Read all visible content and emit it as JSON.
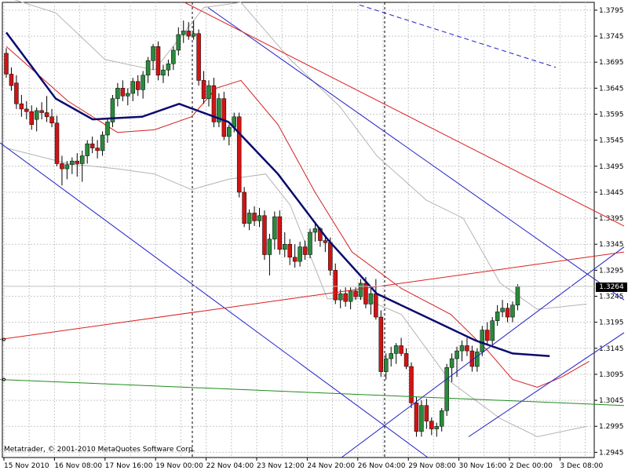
{
  "watermark": "Metatrader, © 2001-2010 MetaQuotes Software Corp.",
  "current_price_label": "1.3264",
  "colors": {
    "bull": "#2a8a3c",
    "bear": "#d01414",
    "ma_slow": "#0a0a6e",
    "ma_fast": "#d42020",
    "bands": "#b4b4b4",
    "channel_blue": "#1e1ec8",
    "channel_red": "#dc1e1e",
    "trend_green": "#1e8c1e",
    "grid": "#c8c8c8"
  },
  "chart_data": {
    "type": "candlestick",
    "y_ticks": [
      "1.3795",
      "1.3745",
      "1.3695",
      "1.3645",
      "1.3595",
      "1.3545",
      "1.3495",
      "1.3445",
      "1.3395",
      "1.3345",
      "1.3295",
      "1.3245",
      "1.3195",
      "1.3145",
      "1.3095",
      "1.3045",
      "1.2995",
      "1.2945"
    ],
    "x_ticks": [
      "15 Nov 2010",
      "16 Nov 08:00",
      "17 Nov 16:00",
      "19 Nov 00:00",
      "22 Nov 04:00",
      "23 Nov 12:00",
      "24 Nov 20:00",
      "26 Nov 04:00",
      "29 Nov 08:00",
      "30 Nov 16:00",
      "2 Dec 00:00",
      "3 Dec 08:00"
    ],
    "ylim": [
      1.2935,
      1.381
    ],
    "candles": [
      [
        1.3712,
        1.3722,
        1.3665,
        1.3672
      ],
      [
        1.3672,
        1.3685,
        1.364,
        1.365
      ],
      [
        1.3655,
        1.367,
        1.3605,
        1.3615
      ],
      [
        1.3615,
        1.3632,
        1.359,
        1.3605
      ],
      [
        1.3605,
        1.362,
        1.3585,
        1.36
      ],
      [
        1.36,
        1.3612,
        1.3565,
        1.3575
      ],
      [
        1.3585,
        1.3608,
        1.3562,
        1.3602
      ],
      [
        1.3602,
        1.3618,
        1.3585,
        1.3598
      ],
      [
        1.3598,
        1.363,
        1.358,
        1.359
      ],
      [
        1.359,
        1.3605,
        1.357,
        1.3578
      ],
      [
        1.3578,
        1.3592,
        1.3495,
        1.35
      ],
      [
        1.35,
        1.3515,
        1.3458,
        1.349
      ],
      [
        1.349,
        1.3505,
        1.347,
        1.3498
      ],
      [
        1.3498,
        1.3512,
        1.348,
        1.3505
      ],
      [
        1.3505,
        1.352,
        1.3475,
        1.35
      ],
      [
        1.35,
        1.3525,
        1.3465,
        1.3515
      ],
      [
        1.3515,
        1.3545,
        1.35,
        1.3538
      ],
      [
        1.3538,
        1.3552,
        1.352,
        1.353
      ],
      [
        1.353,
        1.3545,
        1.351,
        1.3525
      ],
      [
        1.3525,
        1.3562,
        1.3515,
        1.3555
      ],
      [
        1.3555,
        1.3585,
        1.354,
        1.358
      ],
      [
        1.358,
        1.3632,
        1.357,
        1.3625
      ],
      [
        1.3625,
        1.3655,
        1.361,
        1.3645
      ],
      [
        1.3645,
        1.366,
        1.362,
        1.363
      ],
      [
        1.363,
        1.3645,
        1.3612,
        1.3635
      ],
      [
        1.3635,
        1.3665,
        1.362,
        1.3658
      ],
      [
        1.3658,
        1.367,
        1.363,
        1.3642
      ],
      [
        1.3642,
        1.3678,
        1.3625,
        1.367
      ],
      [
        1.367,
        1.3705,
        1.3655,
        1.3698
      ],
      [
        1.3698,
        1.373,
        1.368,
        1.3725
      ],
      [
        1.3725,
        1.3735,
        1.366,
        1.367
      ],
      [
        1.367,
        1.369,
        1.3655,
        1.368
      ],
      [
        1.368,
        1.37,
        1.3668,
        1.3692
      ],
      [
        1.3692,
        1.3725,
        1.368,
        1.3718
      ],
      [
        1.3718,
        1.3762,
        1.3708,
        1.3748
      ],
      [
        1.3748,
        1.3775,
        1.3732,
        1.3755
      ],
      [
        1.3755,
        1.3772,
        1.3738,
        1.3745
      ],
      [
        1.3745,
        1.3775,
        1.3738,
        1.375
      ],
      [
        1.375,
        1.3758,
        1.365,
        1.366
      ],
      [
        1.366,
        1.3678,
        1.3615,
        1.3625
      ],
      [
        1.3625,
        1.366,
        1.361,
        1.365
      ],
      [
        1.365,
        1.3665,
        1.357,
        1.358
      ],
      [
        1.358,
        1.3635,
        1.357,
        1.3625
      ],
      [
        1.3625,
        1.3638,
        1.3545,
        1.3552
      ],
      [
        1.3552,
        1.3575,
        1.3535,
        1.357
      ],
      [
        1.357,
        1.3598,
        1.356,
        1.359
      ],
      [
        1.359,
        1.3598,
        1.3435,
        1.3445
      ],
      [
        1.3445,
        1.3455,
        1.3378,
        1.3385
      ],
      [
        1.3385,
        1.3412,
        1.3372,
        1.3405
      ],
      [
        1.3405,
        1.3418,
        1.338,
        1.339
      ],
      [
        1.339,
        1.3415,
        1.3378,
        1.34
      ],
      [
        1.34,
        1.341,
        1.3315,
        1.3325
      ],
      [
        1.3325,
        1.3365,
        1.3285,
        1.3355
      ],
      [
        1.3355,
        1.3408,
        1.3335,
        1.3398
      ],
      [
        1.3398,
        1.341,
        1.3325,
        1.3335
      ],
      [
        1.3335,
        1.3368,
        1.332,
        1.3345
      ],
      [
        1.3345,
        1.3355,
        1.3305,
        1.332
      ],
      [
        1.332,
        1.3345,
        1.33,
        1.3312
      ],
      [
        1.3312,
        1.335,
        1.3302,
        1.334
      ],
      [
        1.334,
        1.3352,
        1.3315,
        1.3325
      ],
      [
        1.3325,
        1.3375,
        1.3318,
        1.3368
      ],
      [
        1.3368,
        1.3385,
        1.335,
        1.3375
      ],
      [
        1.3375,
        1.3378,
        1.334,
        1.3352
      ],
      [
        1.3352,
        1.3362,
        1.333,
        1.3348
      ],
      [
        1.3348,
        1.3358,
        1.3285,
        1.3295
      ],
      [
        1.3295,
        1.3308,
        1.323,
        1.3238
      ],
      [
        1.3238,
        1.3258,
        1.3222,
        1.325
      ],
      [
        1.325,
        1.3262,
        1.3225,
        1.3235
      ],
      [
        1.3235,
        1.3262,
        1.322,
        1.3255
      ],
      [
        1.3255,
        1.3262,
        1.3238,
        1.3244
      ],
      [
        1.3244,
        1.3278,
        1.3238,
        1.327
      ],
      [
        1.327,
        1.3282,
        1.3222,
        1.323
      ],
      [
        1.323,
        1.3265,
        1.321,
        1.325
      ],
      [
        1.325,
        1.3278,
        1.32,
        1.3205
      ],
      [
        1.3205,
        1.3218,
        1.309,
        1.31
      ],
      [
        1.31,
        1.3135,
        1.3085,
        1.3125
      ],
      [
        1.3125,
        1.3148,
        1.311,
        1.3135
      ],
      [
        1.3135,
        1.3155,
        1.3115,
        1.315
      ],
      [
        1.315,
        1.3165,
        1.313,
        1.3135
      ],
      [
        1.3135,
        1.3145,
        1.3105,
        1.311
      ],
      [
        1.311,
        1.3118,
        1.303,
        1.304
      ],
      [
        1.304,
        1.3052,
        1.2975,
        1.2985
      ],
      [
        1.2985,
        1.3045,
        1.2975,
        1.3035
      ],
      [
        1.3035,
        1.3048,
        1.299,
        1.3005
      ],
      [
        1.3005,
        1.3012,
        1.2978,
        1.299
      ],
      [
        1.299,
        1.3002,
        1.2975,
        1.2995
      ],
      [
        1.2995,
        1.303,
        1.2985,
        1.3025
      ],
      [
        1.3025,
        1.3115,
        1.3015,
        1.3108
      ],
      [
        1.3108,
        1.3135,
        1.308,
        1.3125
      ],
      [
        1.3125,
        1.3148,
        1.309,
        1.314
      ],
      [
        1.314,
        1.316,
        1.312,
        1.315
      ],
      [
        1.315,
        1.3165,
        1.313,
        1.314
      ],
      [
        1.314,
        1.315,
        1.31,
        1.311
      ],
      [
        1.311,
        1.3145,
        1.31,
        1.3138
      ],
      [
        1.3138,
        1.3188,
        1.313,
        1.318
      ],
      [
        1.318,
        1.3195,
        1.315,
        1.316
      ],
      [
        1.316,
        1.3205,
        1.315,
        1.3198
      ],
      [
        1.3198,
        1.3228,
        1.3188,
        1.3215
      ],
      [
        1.3215,
        1.3238,
        1.3205,
        1.3222
      ],
      [
        1.3222,
        1.3232,
        1.3195,
        1.3205
      ],
      [
        1.3205,
        1.3235,
        1.3195,
        1.3228
      ],
      [
        1.3228,
        1.3268,
        1.3218,
        1.3264
      ]
    ],
    "ma_slow": [
      [
        0,
        1.3752
      ],
      [
        20,
        1.3625
      ],
      [
        35,
        1.3585
      ],
      [
        55,
        1.359
      ],
      [
        70,
        1.3615
      ],
      [
        90,
        1.358
      ],
      [
        110,
        1.348
      ],
      [
        130,
        1.3355
      ],
      [
        150,
        1.325
      ],
      [
        170,
        1.3205
      ],
      [
        190,
        1.316
      ],
      [
        205,
        1.3135
      ],
      [
        220,
        1.313
      ]
    ],
    "ma_fast": [
      [
        0,
        1.3725
      ],
      [
        25,
        1.362
      ],
      [
        45,
        1.356
      ],
      [
        60,
        1.3565
      ],
      [
        75,
        1.359
      ],
      [
        85,
        1.3645
      ],
      [
        95,
        1.366
      ],
      [
        110,
        1.3575
      ],
      [
        125,
        1.3445
      ],
      [
        140,
        1.333
      ],
      [
        160,
        1.326
      ],
      [
        180,
        1.321
      ],
      [
        195,
        1.314
      ],
      [
        205,
        1.3085
      ],
      [
        215,
        1.307
      ],
      [
        225,
        1.309
      ],
      [
        236,
        1.312
      ]
    ],
    "band_upper": [
      [
        0,
        1.382
      ],
      [
        20,
        1.379
      ],
      [
        40,
        1.37
      ],
      [
        60,
        1.368
      ],
      [
        80,
        1.38
      ],
      [
        95,
        1.381
      ],
      [
        115,
        1.37
      ],
      [
        135,
        1.361
      ],
      [
        150,
        1.3515
      ],
      [
        170,
        1.343
      ],
      [
        185,
        1.3395
      ],
      [
        200,
        1.327
      ],
      [
        215,
        1.322
      ],
      [
        235,
        1.323
      ]
    ],
    "band_lower": [
      [
        0,
        1.353
      ],
      [
        25,
        1.35
      ],
      [
        45,
        1.349
      ],
      [
        60,
        1.348
      ],
      [
        75,
        1.345
      ],
      [
        90,
        1.347
      ],
      [
        105,
        1.348
      ],
      [
        115,
        1.342
      ],
      [
        130,
        1.324
      ],
      [
        145,
        1.324
      ],
      [
        160,
        1.321
      ],
      [
        180,
        1.308
      ],
      [
        200,
        1.301
      ],
      [
        215,
        1.2975
      ],
      [
        235,
        1.2995
      ]
    ],
    "trendlines": [
      {
        "color": "channel_blue",
        "from": [
          265,
          1.38
        ],
        "to": [
          795,
          1.3238
        ]
      },
      {
        "color": "channel_blue",
        "from": [
          0,
          1.354
        ],
        "to": [
          545,
          1.2935
        ]
      },
      {
        "color": "channel_blue",
        "from": [
          435,
          1.2935
        ],
        "to": [
          795,
          1.334
        ]
      },
      {
        "color": "channel_blue",
        "from": [
          597,
          1.2975
        ],
        "to": [
          795,
          1.3175
        ]
      },
      {
        "color": "channel_red",
        "from": [
          235,
          1.381
        ],
        "to": [
          795,
          1.338
        ]
      },
      {
        "color": "channel_red",
        "from": [
          0,
          1.3162
        ],
        "to": [
          795,
          1.333
        ]
      },
      {
        "color": "trend_green",
        "from": [
          0,
          1.3085
        ],
        "to": [
          795,
          1.3035
        ]
      },
      {
        "color": "channel_blue",
        "from": [
          458,
          1.3805
        ],
        "to": [
          708,
          1.3685
        ],
        "dashed": true
      }
    ]
  }
}
